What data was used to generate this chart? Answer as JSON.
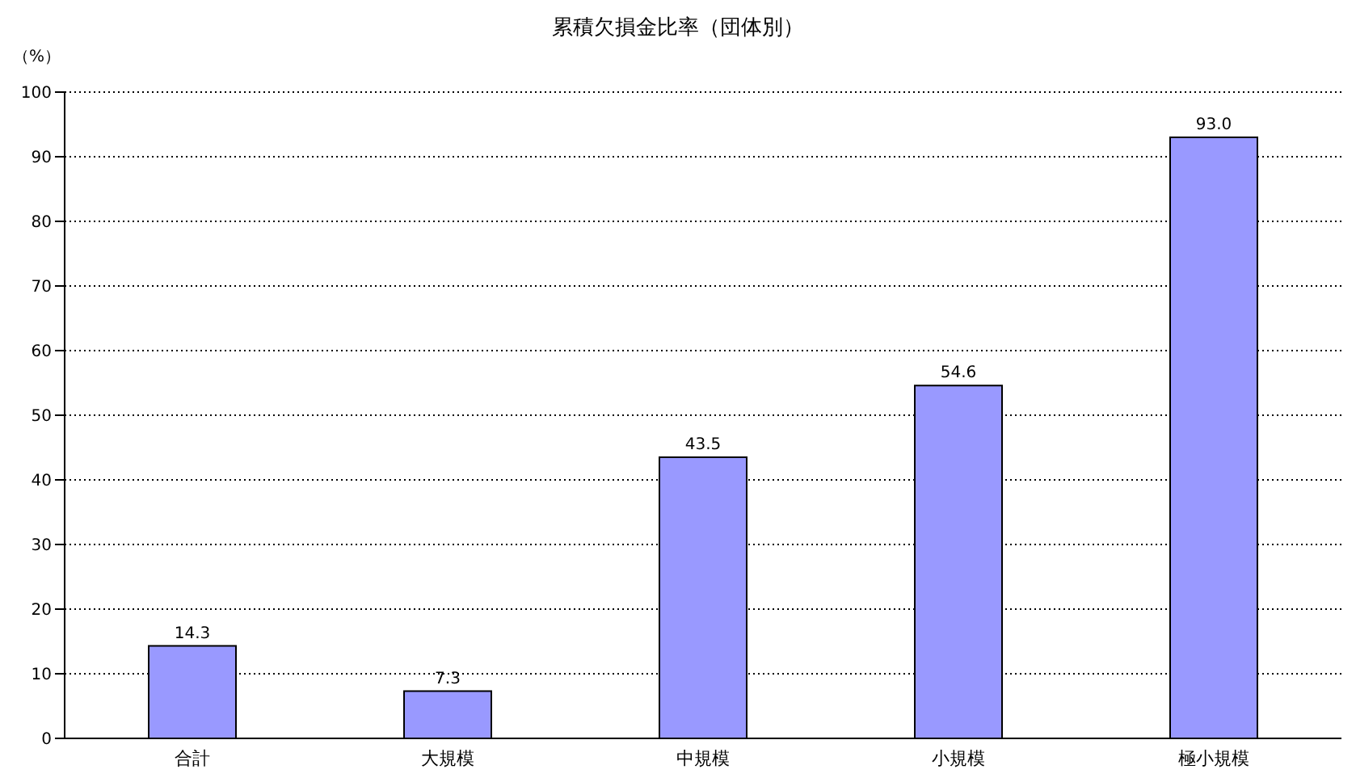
{
  "chart_data": {
    "type": "bar",
    "title": "累積欠損金比率（団体別）",
    "ylabel": "（%）",
    "categories": [
      "合計",
      "大規模",
      "中規模",
      "小規模",
      "極小規模"
    ],
    "values": [
      14.3,
      7.3,
      43.5,
      54.6,
      93.0
    ],
    "value_labels": [
      "14.3",
      "7.3",
      "43.5",
      "54.6",
      "93.0"
    ],
    "color": "#9999ff",
    "ylim": [
      0,
      100
    ],
    "yticks": [
      0,
      10,
      20,
      30,
      40,
      50,
      60,
      70,
      80,
      90,
      100
    ],
    "grid": "y"
  }
}
